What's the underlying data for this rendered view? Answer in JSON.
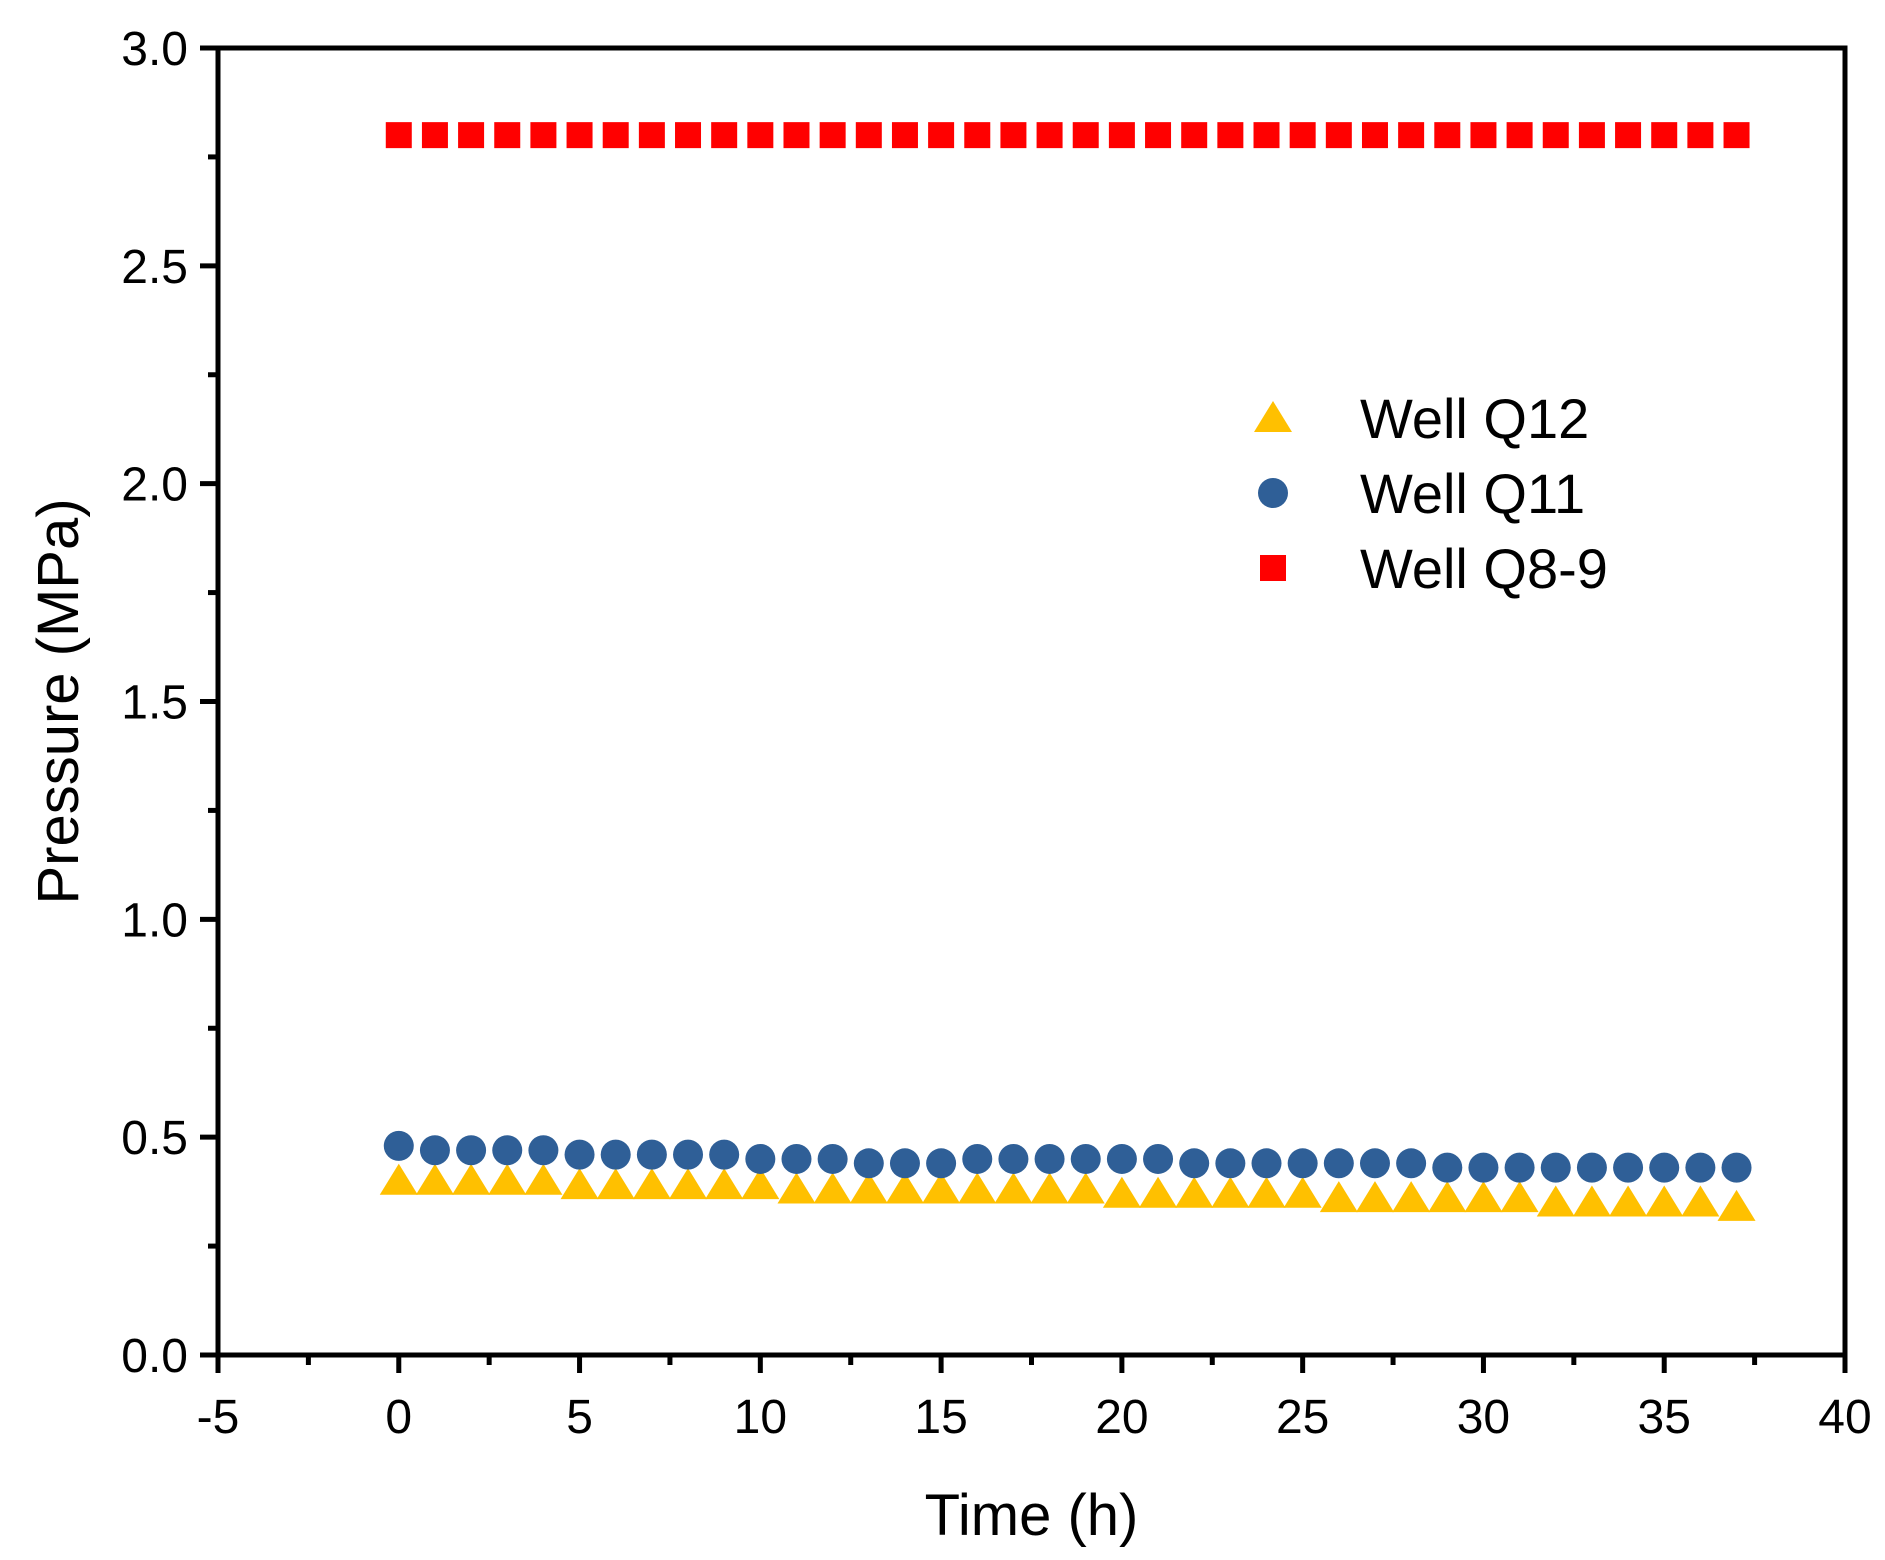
{
  "chart_data": {
    "type": "scatter",
    "title": "",
    "xlabel": "Time (h)",
    "ylabel": "Pressure (MPa)",
    "xlim": [
      -5,
      40
    ],
    "ylim": [
      0.0,
      3.0
    ],
    "xticks": [
      "-5",
      "0",
      "5",
      "10",
      "15",
      "20",
      "25",
      "30",
      "35",
      "40"
    ],
    "yticks": [
      "0.0",
      "0.5",
      "1.0",
      "1.5",
      "2.0",
      "2.5",
      "3.0"
    ],
    "legend_position": "upper-right",
    "x": [
      0,
      1,
      2,
      3,
      4,
      5,
      6,
      7,
      8,
      9,
      10,
      11,
      12,
      13,
      14,
      15,
      16,
      17,
      18,
      19,
      20,
      21,
      22,
      23,
      24,
      25,
      26,
      27,
      28,
      29,
      30,
      31,
      32,
      33,
      34,
      35,
      36,
      37
    ],
    "series": [
      {
        "name": "Well Q12",
        "marker": "triangle",
        "color": "#FFC000",
        "values": [
          0.4,
          0.4,
          0.4,
          0.4,
          0.4,
          0.39,
          0.39,
          0.39,
          0.39,
          0.39,
          0.39,
          0.38,
          0.38,
          0.38,
          0.38,
          0.38,
          0.38,
          0.38,
          0.38,
          0.38,
          0.37,
          0.37,
          0.37,
          0.37,
          0.37,
          0.37,
          0.36,
          0.36,
          0.36,
          0.36,
          0.36,
          0.36,
          0.35,
          0.35,
          0.35,
          0.35,
          0.35,
          0.34
        ]
      },
      {
        "name": "Well Q11",
        "marker": "circle",
        "color": "#2F5F97",
        "values": [
          0.48,
          0.47,
          0.47,
          0.47,
          0.47,
          0.46,
          0.46,
          0.46,
          0.46,
          0.46,
          0.45,
          0.45,
          0.45,
          0.44,
          0.44,
          0.44,
          0.45,
          0.45,
          0.45,
          0.45,
          0.45,
          0.45,
          0.44,
          0.44,
          0.44,
          0.44,
          0.44,
          0.44,
          0.44,
          0.43,
          0.43,
          0.43,
          0.43,
          0.43,
          0.43,
          0.43,
          0.43,
          0.43
        ]
      },
      {
        "name": "Well Q8-9",
        "marker": "square",
        "color": "#FF0000",
        "values": [
          2.8,
          2.8,
          2.8,
          2.8,
          2.8,
          2.8,
          2.8,
          2.8,
          2.8,
          2.8,
          2.8,
          2.8,
          2.8,
          2.8,
          2.8,
          2.8,
          2.8,
          2.8,
          2.8,
          2.8,
          2.8,
          2.8,
          2.8,
          2.8,
          2.8,
          2.8,
          2.8,
          2.8,
          2.8,
          2.8,
          2.8,
          2.8,
          2.8,
          2.8,
          2.8,
          2.8,
          2.8,
          2.8
        ]
      }
    ]
  }
}
